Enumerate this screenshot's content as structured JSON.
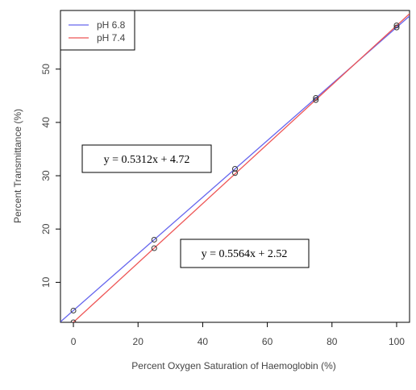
{
  "chart_data": {
    "type": "scatter",
    "xlabel": "Percent Oxygen Saturation of Haemoglobin (%)",
    "ylabel": "Percent Transmittance (%)",
    "xlim": [
      -4,
      104
    ],
    "ylim": [
      2.5,
      61
    ],
    "x_ticks": [
      0,
      20,
      40,
      60,
      80,
      100
    ],
    "y_ticks": [
      10,
      20,
      30,
      40,
      50
    ],
    "grid": false,
    "legend_position": "top-left",
    "series": [
      {
        "name": "pH 6.8",
        "color": "#6666ee",
        "x": [
          0,
          25,
          50,
          75,
          100
        ],
        "y": [
          4.7,
          18.0,
          31.3,
          44.6,
          57.8
        ],
        "fit": {
          "slope": 0.5312,
          "intercept": 4.72,
          "label": "y = 0.5312x + 4.72"
        }
      },
      {
        "name": "pH 7.4",
        "color": "#ee5555",
        "x": [
          0,
          25,
          50,
          75,
          100
        ],
        "y": [
          2.5,
          16.4,
          30.5,
          44.2,
          58.2
        ],
        "fit": {
          "slope": 0.5564,
          "intercept": 2.52,
          "label": "y = 0.5564x + 2.52"
        }
      }
    ]
  }
}
